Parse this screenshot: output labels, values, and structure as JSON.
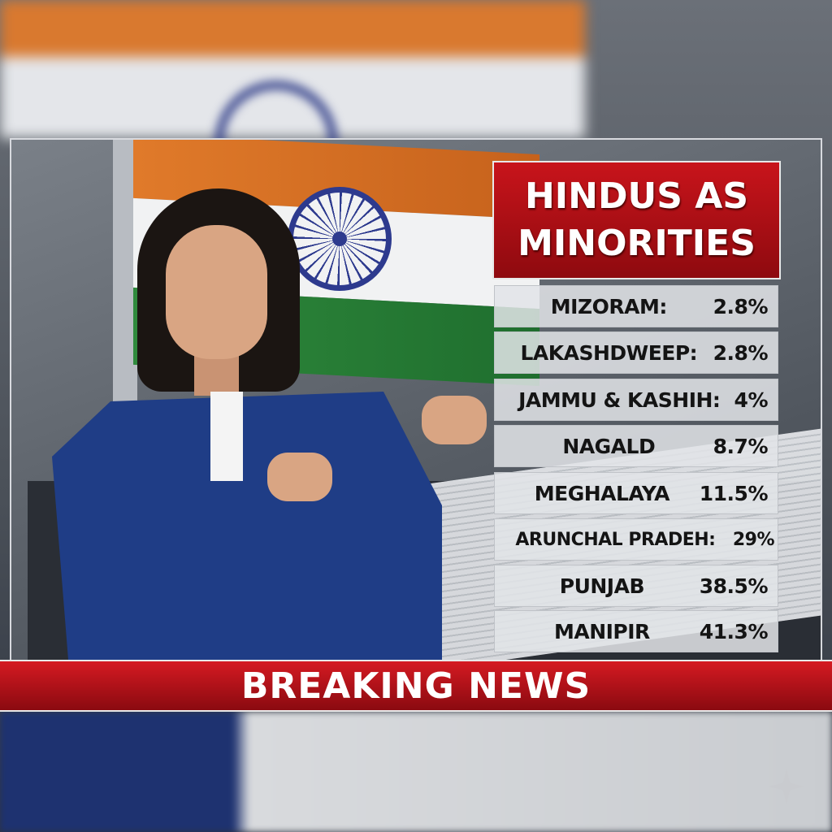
{
  "title": {
    "line1": "HINDUS AS",
    "line2": "MINORITIES"
  },
  "rows": [
    {
      "state": "MIZORAM:",
      "value": "2.8%"
    },
    {
      "state": "LAKASHDWEEP:",
      "value": "2.8%"
    },
    {
      "state": "JAMMU & KASHIH:",
      "value": "4%"
    },
    {
      "state": "NAGALD",
      "value": "8.7%"
    },
    {
      "state": "MEGHALAYA",
      "value": "11.5%"
    },
    {
      "state": "ARUNCHAL PRADEH:",
      "value": "29%"
    },
    {
      "state": "PUNJAB",
      "value": "38.5%"
    },
    {
      "state": "MANIPIR",
      "value": "41.3%"
    }
  ],
  "ticker": "BREAKING NEWS",
  "colors": {
    "banner_red": "#c8141b",
    "saffron": "#e07a2a",
    "green": "#2f8a3c",
    "chakra_blue": "#2d3a8e",
    "suit_blue": "#1f3d86"
  },
  "icons": {
    "watermark": "sparkle-icon"
  }
}
